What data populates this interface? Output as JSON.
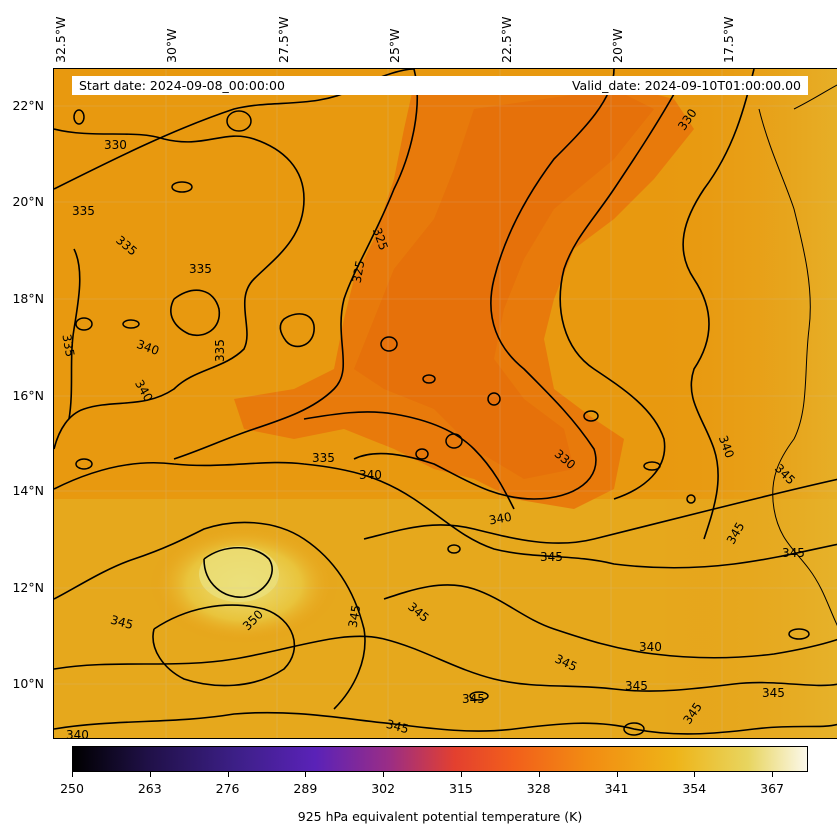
{
  "map": {
    "start_date": "Start date: 2024-09-08_00:00:00",
    "valid_date": "Valid_date: 2024-09-10T01:00:00.00",
    "lon_labels": [
      "32.5°W",
      "30°W",
      "27.5°W",
      "25°W",
      "22.5°W",
      "20°W",
      "17.5°W"
    ],
    "lat_labels": [
      "22°N",
      "20°N",
      "18°N",
      "16°N",
      "14°N",
      "12°N",
      "10°N"
    ],
    "contour_labels": [
      "330",
      "330",
      "335",
      "335",
      "335",
      "335",
      "340",
      "340",
      "340",
      "335",
      "325",
      "325",
      "330",
      "335",
      "340",
      "340",
      "345",
      "345",
      "350",
      "345",
      "345",
      "345",
      "340",
      "345",
      "345",
      "345",
      "345",
      "345",
      "345",
      "340",
      "345",
      "345",
      "340"
    ],
    "colors": {
      "background": "#e89a14",
      "cool_core": "#e8760c",
      "warm_pool": "#e8d86a",
      "contour": "#000000",
      "coast": "#000000"
    }
  },
  "colorbar": {
    "ticks": [
      "250",
      "263",
      "276",
      "289",
      "302",
      "315",
      "328",
      "341",
      "354",
      "367"
    ],
    "title": "925 hPa equivalent potential temperature (K)",
    "range": [
      250,
      373
    ]
  }
}
